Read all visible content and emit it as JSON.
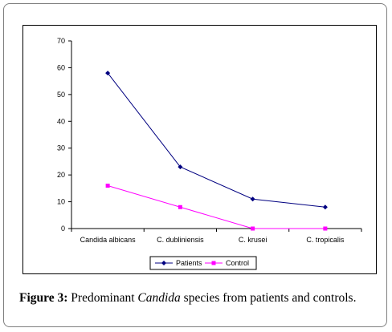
{
  "chart_data": {
    "type": "line",
    "categories": [
      "Candida albicans",
      "C. dubliniensis",
      "C. krusei",
      "C. tropicalis"
    ],
    "series": [
      {
        "name": "Patients",
        "values": [
          58,
          23,
          11,
          8
        ],
        "color": "#000080",
        "marker": "diamond"
      },
      {
        "name": "Control",
        "values": [
          16,
          8,
          0,
          0
        ],
        "color": "#ff00ff",
        "marker": "square"
      }
    ],
    "ylim": [
      0,
      70
    ],
    "yticks": [
      "0",
      "10",
      "20",
      "30",
      "40",
      "50",
      "60",
      "70"
    ],
    "grid": false,
    "legend_position": "bottom"
  },
  "caption": {
    "label": "Figure 3:",
    "text_before": " Predominant ",
    "italic": "Candida",
    "text_after": " species from patients and controls."
  }
}
